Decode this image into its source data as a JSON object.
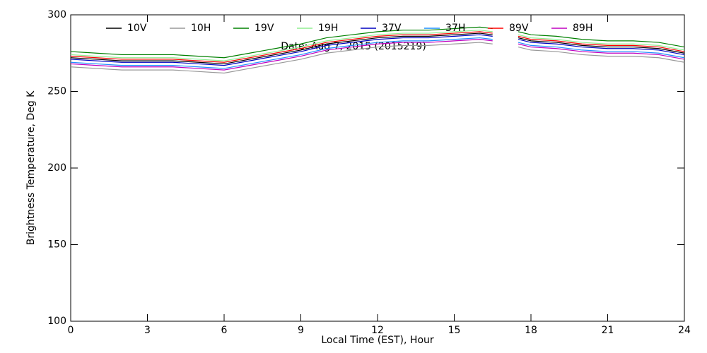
{
  "chart_data": {
    "type": "line",
    "annotation": "Date: Aug  7, 2015 (2015219)",
    "xlabel": "Local Time (EST), Hour",
    "ylabel": "Brightness Temperature, Deg K",
    "x": [
      0,
      1,
      2,
      3,
      4,
      5,
      6,
      7,
      8,
      9,
      10,
      11,
      12,
      13,
      14,
      15,
      16,
      16.5,
      17,
      17.5,
      18,
      19,
      20,
      21,
      22,
      23,
      24
    ],
    "series": [
      {
        "name": "10V",
        "color": "#000000",
        "values": [
          272,
          271,
          270,
          270,
          270,
          269,
          268,
          271,
          274,
          277,
          281,
          283,
          285,
          286,
          286,
          287,
          288,
          287,
          null,
          285,
          283,
          282,
          280,
          279,
          279,
          278,
          275
        ]
      },
      {
        "name": "10H",
        "color": "#999999",
        "values": [
          266,
          265,
          264,
          264,
          264,
          263,
          262,
          265,
          268,
          271,
          275,
          277,
          279,
          280,
          280,
          281,
          282,
          281,
          null,
          279,
          277,
          276,
          274,
          273,
          273,
          272,
          269
        ]
      },
      {
        "name": "19V",
        "color": "#008000",
        "values": [
          276,
          275,
          274,
          274,
          274,
          273,
          272,
          275,
          278,
          281,
          285,
          287,
          289,
          290,
          290,
          291,
          292,
          291,
          null,
          289,
          287,
          286,
          284,
          283,
          283,
          282,
          279
        ]
      },
      {
        "name": "19H",
        "color": "#90ee90",
        "values": [
          274,
          273,
          272,
          272,
          272,
          271,
          270,
          273,
          276,
          279,
          283,
          285,
          287,
          288,
          288,
          289,
          290,
          289,
          null,
          287,
          285,
          284,
          282,
          281,
          281,
          280,
          277
        ]
      },
      {
        "name": "37V",
        "color": "#0000c0",
        "values": [
          271,
          270,
          269,
          269,
          269,
          268,
          267,
          270,
          273,
          276,
          280,
          282,
          284,
          285,
          285,
          286,
          287,
          286,
          null,
          284,
          282,
          281,
          279,
          278,
          278,
          277,
          274
        ]
      },
      {
        "name": "37H",
        "color": "#1e90ff",
        "values": [
          269,
          268,
          267,
          267,
          267,
          266,
          265,
          268,
          271,
          274,
          278,
          280,
          282,
          283,
          283,
          284,
          285,
          284,
          null,
          282,
          280,
          279,
          277,
          276,
          276,
          275,
          272
        ]
      },
      {
        "name": "89V",
        "color": "#ff0000",
        "values": [
          273,
          272,
          271,
          271,
          271,
          270,
          269,
          272,
          275,
          278,
          282,
          284,
          286,
          287,
          287,
          288,
          289,
          288,
          null,
          286,
          284,
          283,
          281,
          280,
          280,
          279,
          276
        ]
      },
      {
        "name": "89H",
        "color": "#c000c0",
        "values": [
          268,
          267,
          266,
          266,
          266,
          265,
          264,
          267,
          270,
          273,
          277,
          279,
          281,
          282,
          282,
          283,
          284,
          283,
          null,
          281,
          279,
          278,
          276,
          275,
          275,
          274,
          271
        ]
      }
    ],
    "xlim": [
      0,
      24
    ],
    "xticks": [
      0,
      3,
      6,
      9,
      12,
      15,
      18,
      21,
      24
    ],
    "ylim": [
      100,
      300
    ],
    "yticks": [
      100,
      150,
      200,
      250,
      300
    ]
  }
}
